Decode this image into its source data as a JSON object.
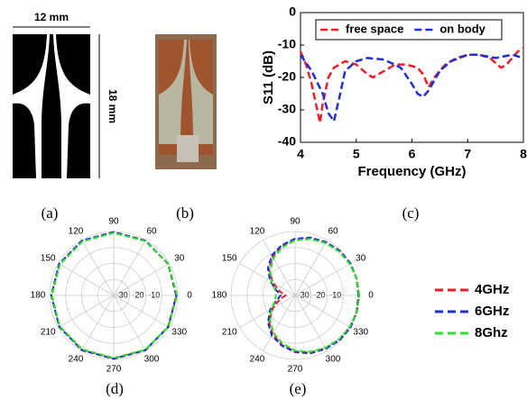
{
  "figure": {
    "width_label": "12 mm",
    "height_label": "18 mm",
    "captions": [
      "(a)",
      "(b)",
      "(c)",
      "(d)",
      "(e)"
    ]
  },
  "chart_data": [
    {
      "type": "line",
      "xlabel": "Frequency (GHz)",
      "ylabel": "S11 (dB)",
      "xlim": [
        4,
        8
      ],
      "xticks": [
        4,
        5,
        6,
        7,
        8
      ],
      "ylim": [
        -40,
        0
      ],
      "yticks": [
        -40,
        -30,
        -20,
        -10,
        0
      ],
      "legend": "top",
      "series": [
        {
          "name": "free space",
          "color": "#e8202a",
          "x": [
            4,
            4.1,
            4.2,
            4.3,
            4.35,
            4.4,
            4.5,
            4.6,
            4.8,
            5,
            5.2,
            5.3,
            5.5,
            5.7,
            5.9,
            6.1,
            6.2,
            6.3,
            6.4,
            6.6,
            6.8,
            7,
            7.2,
            7.4,
            7.6,
            7.7,
            7.9,
            8
          ],
          "values": [
            -12,
            -16,
            -22,
            -30,
            -34,
            -28,
            -20,
            -17,
            -15,
            -16,
            -19,
            -20,
            -18,
            -16,
            -16,
            -17,
            -19,
            -23,
            -20,
            -16,
            -14,
            -13,
            -13,
            -14,
            -17,
            -16,
            -12,
            -11
          ]
        },
        {
          "name": "on body",
          "color": "#1f2fd6",
          "x": [
            4,
            4.2,
            4.4,
            4.5,
            4.6,
            4.7,
            4.8,
            5,
            5.2,
            5.5,
            5.8,
            6,
            6.1,
            6.2,
            6.3,
            6.5,
            6.7,
            7,
            7.2,
            7.5,
            7.8,
            8
          ],
          "values": [
            -13,
            -18,
            -25,
            -31,
            -33.5,
            -26,
            -18,
            -15,
            -14,
            -14.5,
            -17,
            -22,
            -25,
            -26,
            -24,
            -18,
            -15,
            -13,
            -13,
            -14,
            -13,
            -14
          ]
        }
      ]
    },
    {
      "type": "polar",
      "rlim": [
        -40,
        0
      ],
      "rticks": [
        -30,
        -20,
        -10,
        0
      ],
      "thetaticks": [
        0,
        30,
        60,
        90,
        120,
        150,
        180,
        210,
        240,
        270,
        300,
        330
      ],
      "theta": [
        0,
        30,
        60,
        90,
        120,
        150,
        180,
        210,
        240,
        270,
        300,
        330
      ],
      "series": [
        {
          "name": "4GHz",
          "color": "#e8202a",
          "values": [
            -1,
            -0.8,
            -0.6,
            -0.5,
            -0.6,
            -0.9,
            -1.2,
            -0.9,
            -0.6,
            -0.5,
            -0.6,
            -0.8
          ]
        },
        {
          "name": "6GHz",
          "color": "#1f2fd6",
          "values": [
            -0.8,
            -0.6,
            -0.4,
            -0.3,
            -0.4,
            -0.6,
            -1,
            -0.7,
            -0.4,
            -0.3,
            -0.4,
            -0.6
          ]
        },
        {
          "name": "8Ghz",
          "color": "#2ee02e",
          "values": [
            -0.4,
            -0.6,
            -0.8,
            -0.9,
            -1,
            -1.2,
            -1.4,
            -1.2,
            -1,
            -0.9,
            -0.8,
            -0.6
          ]
        }
      ]
    },
    {
      "type": "polar",
      "rlim": [
        -40,
        0
      ],
      "rticks": [
        -30,
        -20,
        -10,
        0
      ],
      "thetaticks": [
        0,
        30,
        60,
        90,
        120,
        150,
        180,
        210,
        240,
        270,
        300,
        330
      ],
      "theta": [
        0,
        15,
        30,
        45,
        60,
        75,
        90,
        105,
        120,
        135,
        150,
        165,
        180,
        195,
        210,
        225,
        240,
        255,
        270,
        285,
        300,
        315,
        330,
        345
      ],
      "series": [
        {
          "color": "#e8202a",
          "values": [
            0,
            0,
            -0.5,
            -1,
            -2,
            -3,
            -5,
            -8,
            -12,
            -17,
            -24,
            -30,
            -34,
            -30,
            -24,
            -17,
            -12,
            -8,
            -5,
            -3,
            -2,
            -1,
            -0.5,
            0
          ]
        },
        {
          "color": "#1f2fd6",
          "values": [
            -0.5,
            -0.3,
            0,
            -0.5,
            -1.5,
            -2.5,
            -4.5,
            -7.5,
            -11,
            -16,
            -22,
            -28,
            -31,
            -28,
            -22,
            -16,
            -11,
            -7.5,
            -4.5,
            -2.5,
            -1.5,
            -0.5,
            0,
            -0.3
          ]
        },
        {
          "color": "#2ee02e",
          "values": [
            0,
            -0.2,
            -0.6,
            -1.2,
            -2.2,
            -3.5,
            -5.5,
            -9,
            -13,
            -18,
            -23,
            -27,
            -28,
            -27,
            -23,
            -18,
            -13,
            -9,
            -5.5,
            -3.5,
            -2.2,
            -1.2,
            -0.6,
            -0.2
          ]
        }
      ]
    }
  ]
}
